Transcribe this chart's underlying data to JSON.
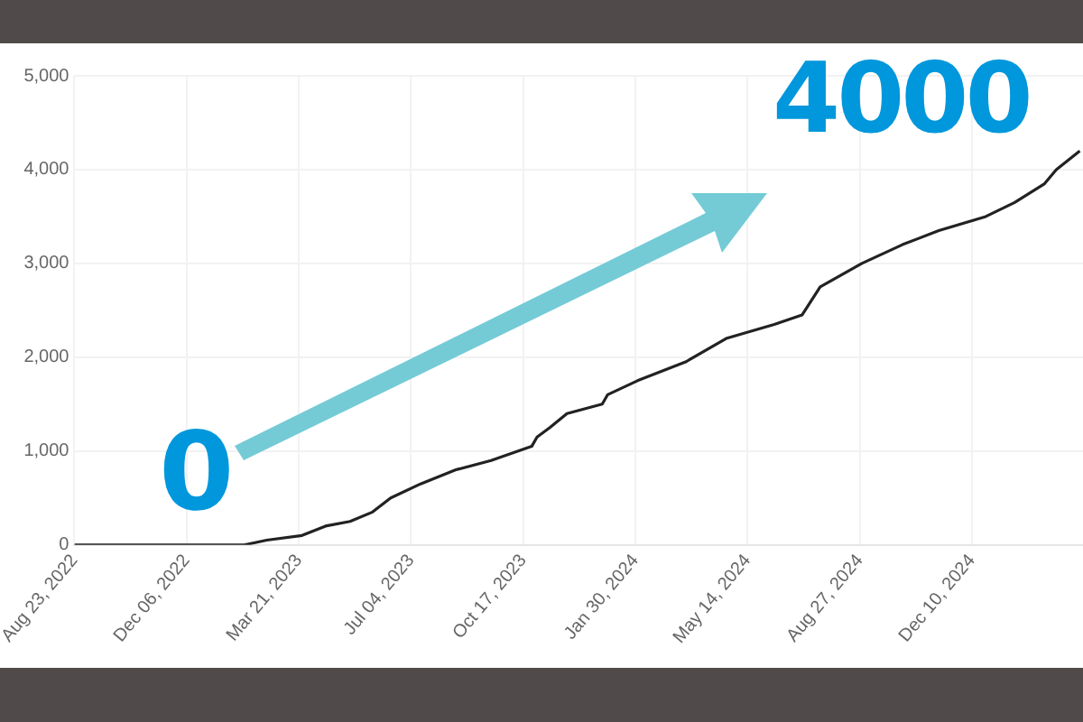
{
  "chart_data": {
    "type": "line",
    "x": [
      "2022-08-23",
      "2023-01-22",
      "2023-01-29",
      "2023-02-19",
      "2023-03-24",
      "2023-04-15",
      "2023-05-08",
      "2023-05-29",
      "2023-06-15",
      "2023-07-13",
      "2023-08-15",
      "2023-09-17",
      "2023-10-25",
      "2023-10-30",
      "2023-11-11",
      "2023-11-27",
      "2023-12-30",
      "2024-01-04",
      "2024-02-01",
      "2024-03-17",
      "2024-04-24",
      "2024-06-08",
      "2024-07-04",
      "2024-07-21",
      "2024-08-29",
      "2024-10-06",
      "2024-11-09",
      "2024-12-23",
      "2025-01-19",
      "2025-02-16",
      "2025-02-27",
      "2025-03-21"
    ],
    "series": [
      {
        "color": "#222222",
        "values": [
          0,
          0,
          0,
          50,
          100,
          200,
          250,
          350,
          500,
          650,
          800,
          900,
          1050,
          1150,
          1250,
          1400,
          1500,
          1600,
          1750,
          1950,
          2200,
          2350,
          2450,
          2750,
          3000,
          3200,
          3350,
          3500,
          3650,
          3850,
          4000,
          4200
        ]
      }
    ],
    "xlim": [
      "2022-08-23",
      "2025-03-24"
    ],
    "xticks": [
      {
        "value": "2022-08-23",
        "label": "Aug 23, 2022"
      },
      {
        "value": "2022-12-06",
        "label": "Dec 06, 2022"
      },
      {
        "value": "2023-03-21",
        "label": "Mar 21, 2023"
      },
      {
        "value": "2023-07-04",
        "label": "Jul 04, 2023"
      },
      {
        "value": "2023-10-17",
        "label": "Oct 17, 2023"
      },
      {
        "value": "2024-01-30",
        "label": "Jan 30, 2024"
      },
      {
        "value": "2024-05-14",
        "label": "May 14, 2024"
      },
      {
        "value": "2024-08-27",
        "label": "Aug 27, 2024"
      },
      {
        "value": "2024-12-10",
        "label": "Dec 10, 2024"
      }
    ],
    "ylim": [
      0,
      5000
    ],
    "yticks": [
      {
        "value": 0,
        "label": "0"
      },
      {
        "value": 1000,
        "label": "1,000"
      },
      {
        "value": 2000,
        "label": "2,000"
      },
      {
        "value": 3000,
        "label": "3,000"
      },
      {
        "value": 4000,
        "label": "4,000"
      },
      {
        "value": 5000,
        "label": "5,000"
      }
    ],
    "grid": true,
    "marker": "none",
    "line_style": "solid",
    "annotations": [
      "0",
      "4000"
    ]
  }
}
